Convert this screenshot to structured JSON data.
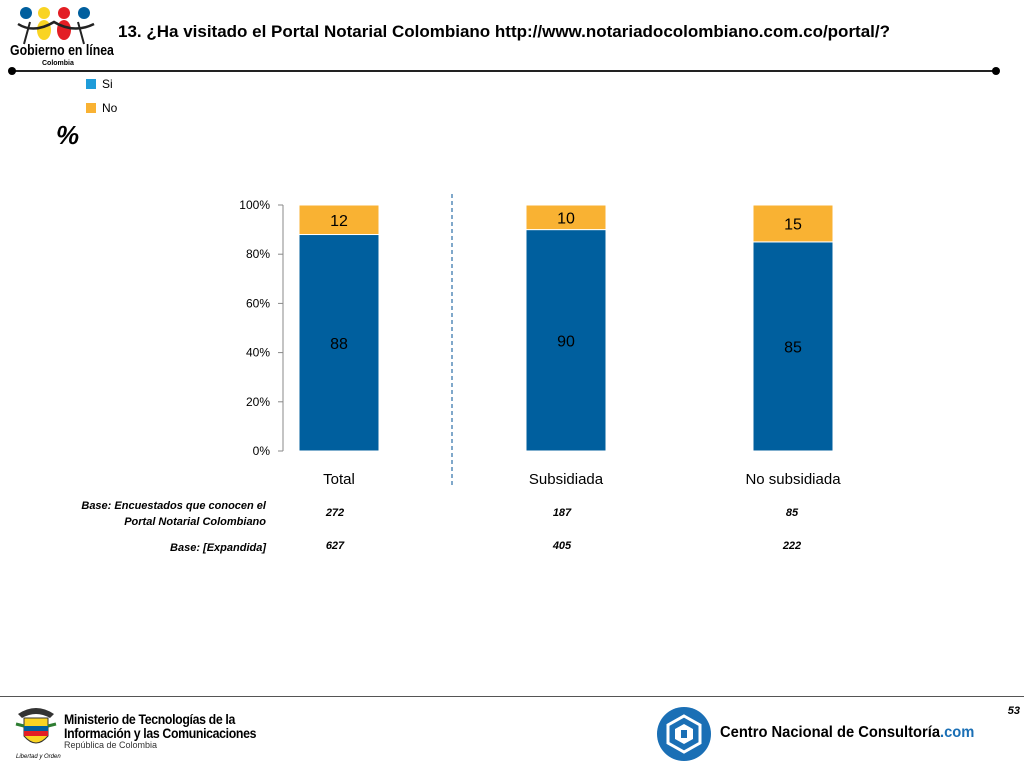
{
  "header": {
    "title": "13. ¿Ha visitado el Portal Notarial Colombiano http://www.notariadocolombiano.com.co/portal/?",
    "logo_text": "Gobierno en línea",
    "logo_sub": "Colombia"
  },
  "legend": [
    {
      "label": "Si",
      "color": "#1F9CD9"
    },
    {
      "label": "No",
      "color": "#F9B233"
    }
  ],
  "percent_symbol": "%",
  "chart_data": {
    "type": "bar",
    "stacked": true,
    "categories": [
      "Total",
      "Subsidiada",
      "No subsidiada"
    ],
    "series": [
      {
        "name": "Si",
        "values": [
          88,
          90,
          85
        ],
        "color": "#005F9E"
      },
      {
        "name": "No",
        "values": [
          12,
          10,
          15
        ],
        "color": "#F9B233"
      }
    ],
    "yticks": [
      "0%",
      "20%",
      "40%",
      "60%",
      "80%",
      "100%"
    ],
    "ylim": [
      0,
      100
    ],
    "separator_after_category": "Total"
  },
  "bases": [
    {
      "label": "Base: Encuestados que conocen el Portal Notarial Colombiano",
      "values": [
        "272",
        "187",
        "85"
      ]
    },
    {
      "label": "Base: [Expandida]",
      "values": [
        "627",
        "405",
        "222"
      ]
    }
  ],
  "footer": {
    "page_number": "53",
    "ministry_line1": "Ministerio de Tecnologías de la",
    "ministry_line2": "Información y las Comunicaciones",
    "ministry_sub": "República de Colombia",
    "motto": "Libertad y Orden",
    "cnc_name": "Centro Nacional de Consultoría",
    "cnc_suffix": ".com"
  }
}
